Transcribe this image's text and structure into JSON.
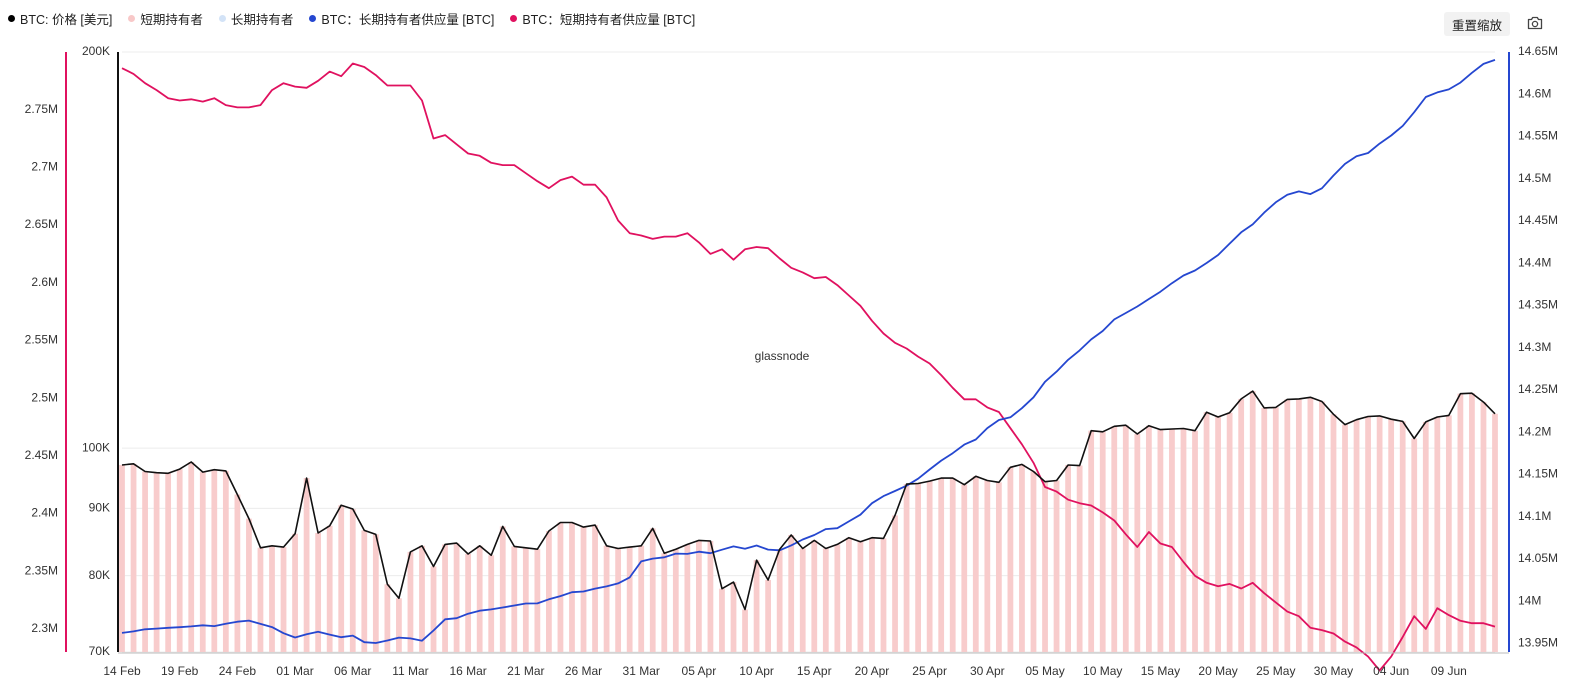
{
  "legend": [
    {
      "label": "BTC: 价格 [美元]",
      "color": "#000000"
    },
    {
      "label": "短期持有者",
      "color": "#f8c8c8"
    },
    {
      "label": "长期持有者",
      "color": "#d3e3f7"
    },
    {
      "label": "BTC：长期持有者供应量 [BTC]",
      "color": "#2547d0"
    },
    {
      "label": "BTC：短期持有者供应量 [BTC]",
      "color": "#e0115f"
    }
  ],
  "toolbar": {
    "reset_label": "重置缩放",
    "camera_icon": "camera-icon"
  },
  "watermark": "glassnode",
  "colors": {
    "price": "#111111",
    "sth_bar": "#f8cccc",
    "lth_line": "#2547d0",
    "sth_line": "#e0115f",
    "grid": "#ececec"
  },
  "chart_data": {
    "type": "line",
    "x_tick_labels": [
      "14 Feb",
      "19 Feb",
      "24 Feb",
      "01 Mar",
      "06 Mar",
      "11 Mar",
      "16 Mar",
      "21 Mar",
      "26 Mar",
      "31 Mar",
      "05 Apr",
      "10 Apr",
      "15 Apr",
      "20 Apr",
      "25 Apr",
      "30 Apr",
      "05 May",
      "10 May",
      "15 May",
      "20 May",
      "25 May",
      "30 May",
      "04 Jun",
      "09 Jun"
    ],
    "x_start": "14 Feb",
    "x_end": "11 Jun",
    "axes": {
      "left_outer": {
        "ticks": [
          "2.3M",
          "2.35M",
          "2.4M",
          "2.45M",
          "2.5M",
          "2.55M",
          "2.6M",
          "2.65M",
          "2.7M",
          "2.75M"
        ],
        "range": [
          2.28,
          2.8
        ],
        "unit": "M BTC",
        "series": "BTC：短期持有者供应量 [BTC]"
      },
      "left_inner": {
        "ticks": [
          "70K",
          "80K",
          "90K",
          "100K",
          "200K"
        ],
        "scale": "log",
        "range": [
          70000,
          200000
        ],
        "series": "BTC: 价格 [美元]"
      },
      "right": {
        "ticks": [
          "13.95M",
          "14M",
          "14.05M",
          "14.1M",
          "14.15M",
          "14.2M",
          "14.25M",
          "14.3M",
          "14.35M",
          "14.4M",
          "14.45M",
          "14.5M",
          "14.55M",
          "14.6M",
          "14.65M"
        ],
        "range": [
          13.94,
          14.65
        ],
        "unit": "M BTC",
        "series": "BTC：长期持有者供应量 [BTC]"
      }
    },
    "series": [
      {
        "name": "BTC: 价格 [美元]",
        "axis": "left_inner",
        "values": [
          97100,
          97300,
          96000,
          95800,
          95700,
          96400,
          97600,
          95900,
          96300,
          96100,
          92200,
          88400,
          84000,
          84300,
          84100,
          86100,
          94900,
          86200,
          87300,
          90500,
          89900,
          86600,
          86000,
          78800,
          76900,
          83400,
          84300,
          81300,
          84500,
          84700,
          83100,
          84300,
          82900,
          87200,
          84200,
          84000,
          83800,
          86500,
          87800,
          87800,
          87100,
          87400,
          84300,
          83900,
          84100,
          84300,
          86900,
          83200,
          83800,
          84500,
          85100,
          85000,
          78200,
          79100,
          75400,
          82200,
          79400,
          83800,
          85900,
          83900,
          85100,
          83900,
          84500,
          85500,
          84900,
          85500,
          85400,
          88900,
          93900,
          94000,
          94400,
          94900,
          94900,
          93800,
          95200,
          94500,
          94200,
          96700,
          97200,
          96000,
          94300,
          94500,
          97100,
          97000,
          103100,
          102900,
          103900,
          104100,
          102500,
          104000,
          103300,
          103400,
          103500,
          103100,
          106500,
          105600,
          106400,
          109000,
          110500,
          107300,
          107400,
          108900,
          109000,
          109300,
          108500,
          106100,
          104200,
          105100,
          105700,
          105800,
          105200,
          104800,
          101700,
          104700,
          105600,
          105900,
          110000,
          110100,
          108400,
          106200
        ]
      },
      {
        "name": "短期持有者",
        "axis": "left_inner",
        "type": "bar",
        "values": [
          97100,
          97300,
          96000,
          95800,
          95700,
          96400,
          97600,
          95900,
          96300,
          96100,
          92200,
          88400,
          84000,
          84300,
          84100,
          86100,
          94900,
          86200,
          87300,
          90500,
          89900,
          86600,
          86000,
          78800,
          76900,
          83400,
          84300,
          81300,
          84500,
          84700,
          83100,
          84300,
          82900,
          87200,
          84200,
          84000,
          83800,
          86500,
          87800,
          87800,
          87100,
          87400,
          84300,
          83900,
          84100,
          84300,
          86900,
          83200,
          83800,
          84500,
          85100,
          85000,
          78200,
          79100,
          75400,
          82200,
          79400,
          83800,
          85900,
          83900,
          85100,
          83900,
          84500,
          85500,
          84900,
          85500,
          85400,
          88900,
          93900,
          94000,
          94400,
          94900,
          94900,
          93800,
          95200,
          94500,
          94200,
          96700,
          97200,
          96000,
          94300,
          94500,
          97100,
          97000,
          103100,
          102900,
          103900,
          104100,
          102500,
          104000,
          103300,
          103400,
          103500,
          103100,
          106500,
          105600,
          106400,
          109000,
          110500,
          107300,
          107400,
          108900,
          109000,
          109300,
          108500,
          106100,
          104200,
          105100,
          105700,
          105800,
          105200,
          104800,
          101700,
          104700,
          105600,
          105900,
          110000,
          110100,
          108400,
          106200
        ]
      },
      {
        "name": "BTC：长期持有者供应量 [BTC]",
        "axis": "right",
        "values": [
          13.9626,
          13.9644,
          13.9669,
          13.9677,
          13.9686,
          13.9694,
          13.9703,
          13.9716,
          13.9707,
          13.9735,
          13.9759,
          13.9771,
          13.9733,
          13.9695,
          13.9623,
          13.9572,
          13.961,
          13.9639,
          13.9606,
          13.9575,
          13.9594,
          13.9516,
          13.9506,
          13.9536,
          13.957,
          13.9561,
          13.9534,
          13.9655,
          13.9787,
          13.98,
          13.9853,
          13.9889,
          13.9904,
          13.9926,
          13.995,
          13.9974,
          13.9975,
          14.0024,
          14.0061,
          14.0108,
          14.0116,
          14.015,
          14.0176,
          14.0212,
          14.0283,
          14.0472,
          14.0505,
          14.0521,
          14.0564,
          14.0561,
          14.0587,
          14.0569,
          14.061,
          14.065,
          14.0622,
          14.066,
          14.0612,
          14.0603,
          14.0661,
          14.0731,
          14.0785,
          14.0854,
          14.0865,
          14.0945,
          14.1025,
          14.1161,
          14.1245,
          14.1305,
          14.1368,
          14.1451,
          14.156,
          14.1665,
          14.1753,
          14.1854,
          14.1915,
          14.2049,
          14.2145,
          14.2177,
          14.2285,
          14.2414,
          14.2597,
          14.2718,
          14.2858,
          14.2969,
          14.3099,
          14.3199,
          14.3336,
          14.3412,
          14.3489,
          14.3577,
          14.3664,
          14.3764,
          14.3855,
          14.3914,
          14.4003,
          14.4098,
          14.4233,
          14.4367,
          14.446,
          14.46,
          14.4721,
          14.481,
          14.485,
          14.4818,
          14.4887,
          14.5038,
          14.5176,
          14.5267,
          14.5305,
          14.5416,
          14.5512,
          14.5625,
          14.5788,
          14.5968,
          14.6022,
          14.6057,
          14.6138,
          14.6254,
          14.6359,
          14.6407
        ]
      },
      {
        "name": "BTC：短期持有者供应量 [BTC]",
        "axis": "left_outer",
        "values": [
          2.786,
          2.781,
          2.773,
          2.767,
          2.76,
          2.758,
          2.759,
          2.757,
          2.76,
          2.754,
          2.752,
          2.752,
          2.754,
          2.767,
          2.773,
          2.77,
          2.769,
          2.775,
          2.783,
          2.779,
          2.79,
          2.787,
          2.78,
          2.771,
          2.771,
          2.771,
          2.758,
          2.725,
          2.728,
          2.72,
          2.712,
          2.71,
          2.704,
          2.702,
          2.702,
          2.695,
          2.688,
          2.682,
          2.689,
          2.692,
          2.685,
          2.685,
          2.674,
          2.654,
          2.643,
          2.641,
          2.638,
          2.64,
          2.64,
          2.643,
          2.635,
          2.625,
          2.629,
          2.62,
          2.629,
          2.631,
          2.63,
          2.621,
          2.613,
          2.609,
          2.604,
          2.605,
          2.598,
          2.589,
          2.58,
          2.567,
          2.556,
          2.548,
          2.543,
          2.536,
          2.53,
          2.52,
          2.509,
          2.499,
          2.499,
          2.492,
          2.488,
          2.474,
          2.46,
          2.444,
          2.423,
          2.419,
          2.412,
          2.409,
          2.407,
          2.401,
          2.394,
          2.382,
          2.371,
          2.384,
          2.374,
          2.371,
          2.358,
          2.346,
          2.34,
          2.337,
          2.339,
          2.335,
          2.34,
          2.331,
          2.323,
          2.315,
          2.311,
          2.301,
          2.299,
          2.296,
          2.289,
          2.284,
          2.276,
          2.264,
          2.276,
          2.293,
          2.311,
          2.3,
          2.318,
          2.312,
          2.307,
          2.305,
          2.305,
          2.302
        ]
      }
    ]
  }
}
